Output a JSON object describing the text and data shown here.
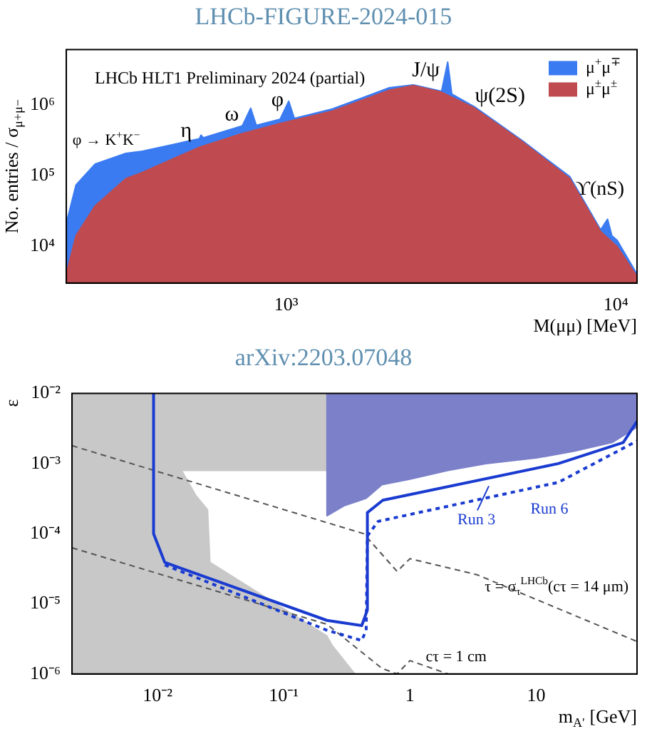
{
  "chart_data": [
    {
      "type": "area",
      "title": "LHCb-FIGURE-2024-015",
      "xlabel": "M(μμ) [MeV]",
      "ylabel": "No. entries / σ$_{μ+μ−}$",
      "log": "xy",
      "legend": "top right",
      "xlim": [
        215,
        11600
      ],
      "ylim": [
        3000,
        6000000
      ],
      "xticks": [
        {
          "value": 1000,
          "label": "10³"
        },
        {
          "value": 10000,
          "label": "10⁴"
        }
      ],
      "yticks": [
        {
          "value": 10000,
          "label": "10⁴"
        },
        {
          "value": 100000,
          "label": "10⁵"
        },
        {
          "value": 1000000,
          "label": "10⁶"
        }
      ],
      "annotations": [
        "LHCb HLT1 Preliminary 2024 (partial)",
        "φ → K$^{+}$K$^{−}$",
        "η",
        "ω",
        "φ",
        "J/ψ",
        "ψ(2S)",
        "ϒ(nS)"
      ],
      "series": [
        {
          "name": "μ$^{+}$μ$^{∓}$",
          "color": "#3a7bf2",
          "x": [
            215,
            230,
            263,
            326,
            366,
            545,
            551,
            560,
            735,
            780,
            811,
            957,
            1017,
            1058,
            1380,
            2055,
            2430,
            2960,
            3090,
            3180,
            3730,
            5200,
            7250,
            9000,
            9440,
            9730,
            10100,
            11600
          ],
          "values": [
            21000,
            73000,
            145000,
            205000,
            220000,
            330000,
            370000,
            340000,
            500000,
            890000,
            510000,
            620000,
            1120000,
            640000,
            870000,
            1740000,
            1900000,
            1550000,
            4000000,
            1410000,
            930000,
            310000,
            96000,
            17000,
            24000,
            14000,
            12000,
            4000
          ]
        },
        {
          "name": "μ$^{±}$μ$^{±}$",
          "color": "#bf4b50",
          "x": [
            215,
            230,
            263,
            326,
            366,
            545,
            735,
            957,
            1380,
            2055,
            2430,
            2960,
            3730,
            5200,
            7250,
            9000,
            10100,
            11600
          ],
          "values": [
            4000,
            14000,
            37000,
            90000,
            110000,
            250000,
            390000,
            540000,
            810000,
            1600000,
            1860000,
            1500000,
            890000,
            300000,
            90000,
            16000,
            9800,
            3700
          ]
        }
      ]
    },
    {
      "type": "line",
      "title": "arXiv:2203.07048",
      "xlabel": "m$_{A′}$ [GeV]",
      "ylabel": "ε",
      "log": "xy",
      "xlim": [
        0.0021,
        63
      ],
      "ylim": [
        1e-06,
        0.01
      ],
      "xticks": [
        {
          "value": 0.01,
          "label": "10⁻²"
        },
        {
          "value": 0.1,
          "label": "10⁻¹"
        },
        1,
        10
      ],
      "yticks": [
        {
          "value": 1e-06,
          "label": "10⁻⁶"
        },
        {
          "value": 1e-05,
          "label": "10⁻⁵"
        },
        {
          "value": 0.0001,
          "label": "10⁻⁴"
        },
        {
          "value": 0.001,
          "label": "10⁻³"
        },
        {
          "value": 0.01,
          "label": "10⁻²"
        }
      ],
      "annotations": [
        "τ = σ$_{τ}$$^{LHCb}$(cτ = 14 μm)",
        "cτ = 1 cm"
      ],
      "series": [
        {
          "type": "area",
          "color": "#c8c8c8",
          "x": [
            0.0021,
            0.0021,
            0.0155,
            0.0155,
            0.22,
            0.22
          ],
          "values": [
            0.01,
            1e-06,
            1e-06,
            0.0008,
            0.0008,
            0.01
          ]
        },
        {
          "type": "area",
          "color": "#c8c8c8",
          "x": [
            0.0155,
            0.0201,
            0.0249,
            0.026,
            0.219,
            0.24,
            0.366
          ],
          "values": [
            0.0008,
            0.00035,
            0.00022,
            3.9e-05,
            3.5e-06,
            2.6e-06,
            1e-06
          ]
        },
        {
          "type": "area",
          "color": "#7b80c9",
          "x": [
            0.22,
            0.22,
            0.3,
            0.45,
            0.6,
            1,
            2,
            4,
            10,
            20,
            40,
            63,
            63
          ],
          "values": [
            0.01,
            0.00018,
            0.00025,
            0.00032,
            0.0005,
            0.0006,
            0.0008,
            0.001,
            0.0012,
            0.0015,
            0.002,
            0.0033,
            0.01
          ]
        },
        {
          "color": "#555555",
          "line_style": "dashed",
          "x": [
            0.0021,
            0.43,
            0.79,
            1,
            3.4,
            63
          ],
          "values": [
            0.0018,
            0.0001,
            2.9e-05,
            4.4e-05,
            2.6e-05,
            2.9e-06
          ]
        },
        {
          "color": "#555555",
          "line_style": "dashed",
          "x": [
            0.0021,
            0.22,
            0.6,
            0.79,
            1,
            2
          ],
          "values": [
            6.3e-05,
            5.1e-06,
            1.2e-06,
            1e-06,
            1.55e-06,
            1e-06
          ]
        },
        {
          "name": "Run 3",
          "color": "#1a3bd0",
          "line_style": "solid",
          "x": [
            0.0093,
            0.0093,
            0.0114,
            0.22,
            0.415,
            0.46,
            0.46,
            0.61,
            15,
            49,
            63
          ],
          "values": [
            0.01,
            0.0001,
            3.9e-05,
            5.8e-06,
            4.9e-06,
            8.2e-06,
            0.0002,
            0.0003,
            0.001,
            0.002,
            0.004
          ]
        },
        {
          "name": "Run 6",
          "color": "#1a3bd0",
          "line_style": "dotted",
          "x": [
            0.0114,
            0.22,
            0.415,
            0.45,
            0.46,
            0.56,
            15,
            63
          ],
          "values": [
            3.6e-05,
            4.2e-06,
            3e-06,
            4.2e-06,
            9.3e-05,
            0.00015,
            0.00054,
            0.0021
          ]
        }
      ]
    }
  ]
}
